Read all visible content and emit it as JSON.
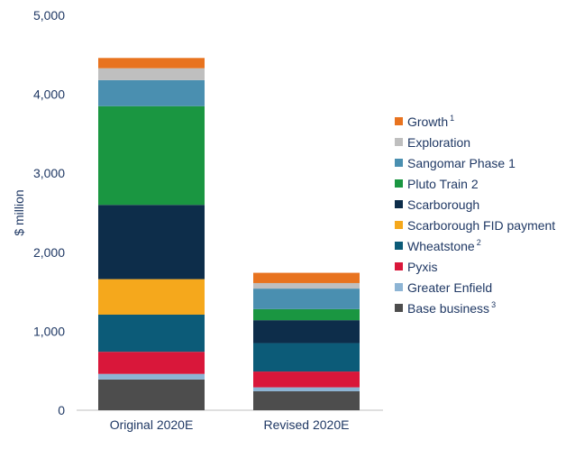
{
  "chart_data": {
    "type": "bar",
    "stacked": true,
    "categories": [
      "Original 2020E",
      "Revised 2020E"
    ],
    "ylabel": "$ million",
    "ylim": [
      0,
      5000
    ],
    "yticks": [
      "0",
      "1,000",
      "2,000",
      "3,000",
      "4,000",
      "5,000"
    ],
    "ytick_values": [
      0,
      1000,
      2000,
      3000,
      4000,
      5000
    ],
    "grid": false,
    "legend_position": "right",
    "series": [
      {
        "name": "Base business",
        "sup": "3",
        "color": "#4d4d4d",
        "values": [
          390,
          240
        ]
      },
      {
        "name": "Greater Enfield",
        "sup": "",
        "color": "#8db4d4",
        "values": [
          70,
          50
        ]
      },
      {
        "name": "Pyxis",
        "sup": "",
        "color": "#d9173a",
        "values": [
          280,
          200
        ]
      },
      {
        "name": "Wheatstone",
        "sup": "2",
        "color": "#0c5b78",
        "values": [
          470,
          360
        ]
      },
      {
        "name": "Scarborough FID payment",
        "sup": "",
        "color": "#f5a81c",
        "values": [
          450,
          0
        ]
      },
      {
        "name": "Scarborough",
        "sup": "",
        "color": "#0d2d4a",
        "values": [
          940,
          290
        ]
      },
      {
        "name": "Pluto Train 2",
        "sup": "",
        "color": "#1a9641",
        "values": [
          1250,
          140
        ]
      },
      {
        "name": "Sangomar Phase 1",
        "sup": "",
        "color": "#4a8fb0",
        "values": [
          330,
          260
        ]
      },
      {
        "name": "Exploration",
        "sup": "",
        "color": "#bfbfbf",
        "values": [
          150,
          70
        ]
      },
      {
        "name": "Growth",
        "sup": "1",
        "color": "#e8731f",
        "values": [
          130,
          130
        ]
      }
    ]
  }
}
